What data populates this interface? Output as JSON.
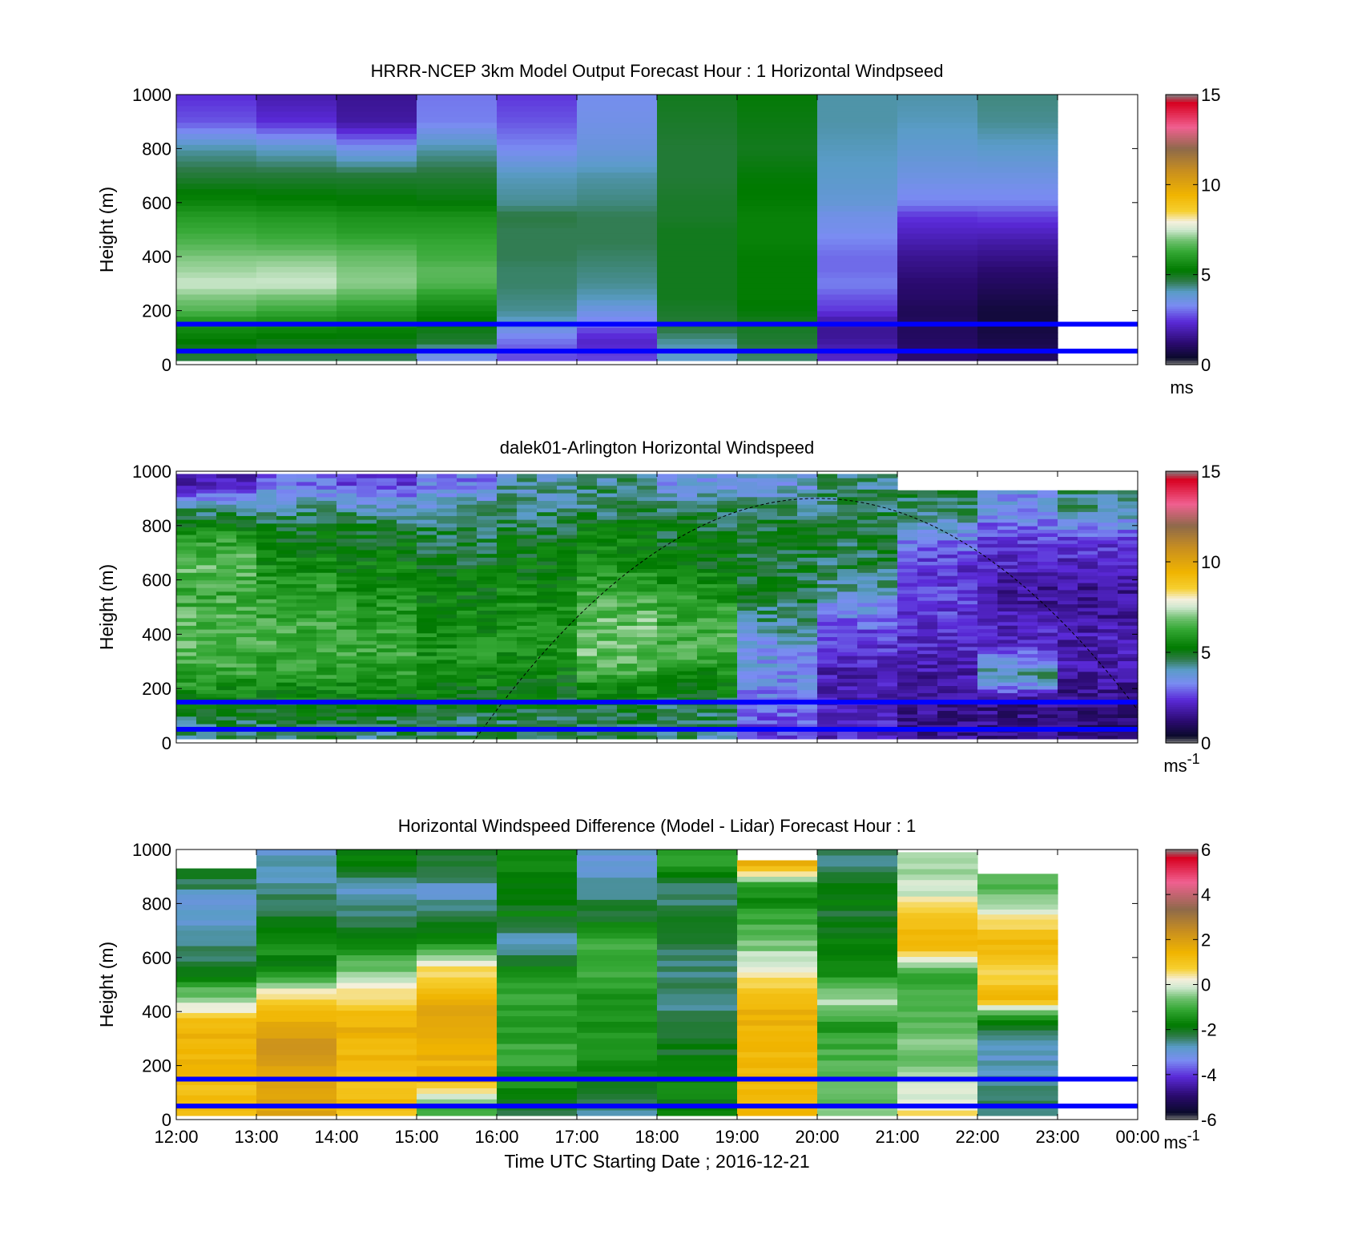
{
  "chart_data": [
    {
      "type": "heatmap",
      "title": "HRRR-NCEP 3km Model Output   Forecast Hour : 1 Horizontal Windpseed",
      "ylabel": "Height (m)",
      "ylim": [
        0,
        1000
      ],
      "yticks": [
        "0",
        "200",
        "400",
        "600",
        "800",
        "1000"
      ],
      "xticks": [
        "12:00",
        "13:00",
        "14:00",
        "15:00",
        "16:00",
        "17:00",
        "18:00",
        "19:00",
        "20:00",
        "21:00",
        "22:00",
        "23:00",
        "00:00"
      ],
      "show_xtick_labels": false,
      "colorbar": {
        "min": 0,
        "max": 15,
        "ticks": [
          "0",
          "5",
          "10",
          "15"
        ],
        "unit": "ms",
        "unit_sup": "",
        "scale": "speed"
      },
      "x_hours": [
        12,
        13,
        14,
        15,
        16,
        17,
        18,
        19,
        20,
        21,
        22
      ],
      "heights": [
        40,
        80,
        120,
        160,
        200,
        250,
        300,
        350,
        400,
        450,
        500,
        550,
        600,
        700,
        800,
        900,
        1000
      ],
      "grid_values": [
        [
          4.8,
          4.6,
          4.6,
          3.5,
          2.7,
          2.6,
          4.0,
          4.5,
          2.2,
          1.2,
          1.0
        ],
        [
          5.2,
          5.0,
          5.0,
          4.8,
          3.0,
          2.2,
          4.2,
          4.8,
          1.8,
          1.1,
          0.8
        ],
        [
          5.5,
          5.4,
          5.3,
          5.0,
          3.4,
          2.5,
          4.6,
          4.9,
          1.6,
          1.0,
          0.7
        ],
        [
          5.8,
          5.7,
          5.6,
          5.2,
          4.0,
          3.2,
          4.8,
          5.0,
          1.8,
          1.0,
          0.6
        ],
        [
          6.6,
          6.3,
          6.0,
          5.5,
          4.3,
          3.6,
          4.9,
          5.2,
          2.5,
          0.9,
          0.6
        ],
        [
          7.0,
          6.9,
          6.6,
          6.0,
          4.4,
          4.1,
          5.0,
          5.3,
          2.8,
          1.1,
          0.8
        ],
        [
          7.5,
          7.5,
          7.1,
          6.6,
          4.5,
          4.3,
          5.0,
          5.3,
          3.2,
          1.2,
          1.0
        ],
        [
          7.2,
          7.3,
          7.0,
          6.7,
          4.5,
          4.4,
          5.0,
          5.3,
          3.0,
          1.4,
          1.2
        ],
        [
          7.0,
          7.0,
          6.8,
          6.4,
          4.6,
          4.5,
          5.0,
          5.3,
          3.0,
          1.6,
          1.5
        ],
        [
          6.6,
          6.5,
          6.4,
          6.3,
          4.6,
          4.6,
          5.0,
          5.4,
          3.2,
          1.9,
          1.8
        ],
        [
          6.3,
          6.2,
          6.0,
          6.0,
          4.6,
          4.6,
          5.0,
          5.4,
          3.4,
          2.2,
          2.2
        ],
        [
          6.0,
          5.9,
          5.8,
          5.8,
          4.7,
          4.6,
          4.9,
          5.4,
          3.5,
          2.5,
          2.6
        ],
        [
          5.5,
          5.4,
          5.3,
          5.2,
          4.3,
          4.4,
          4.9,
          5.3,
          3.8,
          3.2,
          3.2
        ],
        [
          4.8,
          4.8,
          4.8,
          4.8,
          4.1,
          4.2,
          4.8,
          5.2,
          4.0,
          3.6,
          3.6
        ],
        [
          4.2,
          4.0,
          3.5,
          4.2,
          3.3,
          3.7,
          4.8,
          5.0,
          4.1,
          3.9,
          4.0
        ],
        [
          2.8,
          2.4,
          1.8,
          3.2,
          2.8,
          3.5,
          4.9,
          5.1,
          4.2,
          4.1,
          4.3
        ],
        [
          2.4,
          1.9,
          1.6,
          3.1,
          2.5,
          3.4,
          5.0,
          5.2,
          4.2,
          4.2,
          4.4
        ]
      ],
      "guide_lines_m": [
        50,
        150
      ]
    },
    {
      "type": "heatmap",
      "title": "dalek01-Arlington  Horizontal Windspeed",
      "ylabel": "Height (m)",
      "ylim": [
        0,
        1000
      ],
      "yticks": [
        "0",
        "200",
        "400",
        "600",
        "800",
        "1000"
      ],
      "xticks": [
        "12:00",
        "13:00",
        "14:00",
        "15:00",
        "16:00",
        "17:00",
        "18:00",
        "19:00",
        "20:00",
        "21:00",
        "22:00",
        "23:00",
        "00:00"
      ],
      "show_xtick_labels": false,
      "colorbar": {
        "min": 0,
        "max": 15,
        "ticks": [
          "0",
          "5",
          "10",
          "15"
        ],
        "unit": "ms",
        "unit_sup": "-1",
        "scale": "speed"
      },
      "x_hours": [
        12,
        13,
        14,
        15,
        16,
        17,
        18,
        19,
        20,
        21,
        22,
        23
      ],
      "heights": [
        50,
        150,
        250,
        350,
        450,
        550,
        650,
        750,
        850,
        950
      ],
      "grid_values": [
        [
          4.5,
          4.6,
          4.6,
          4.4,
          4.6,
          4.6,
          4.4,
          2.6,
          2.2,
          1.6,
          1.5,
          1.3
        ],
        [
          5.2,
          5.2,
          5.2,
          5.1,
          5.0,
          5.0,
          4.8,
          3.2,
          2.0,
          1.6,
          1.5,
          1.4
        ],
        [
          6.2,
          6.0,
          6.0,
          5.6,
          5.4,
          6.2,
          5.6,
          3.4,
          2.0,
          1.8,
          4.4,
          1.8
        ],
        [
          6.6,
          6.4,
          6.3,
          5.8,
          5.8,
          6.9,
          6.6,
          3.6,
          2.4,
          2.2,
          2.4,
          2.0
        ],
        [
          6.6,
          6.3,
          6.1,
          5.5,
          5.8,
          6.8,
          6.3,
          4.4,
          3.0,
          2.4,
          2.0,
          1.8
        ],
        [
          6.3,
          6.2,
          5.8,
          5.4,
          5.6,
          6.3,
          5.9,
          4.8,
          4.0,
          2.6,
          1.6,
          1.6
        ],
        [
          6.6,
          5.7,
          5.4,
          5.0,
          5.2,
          5.8,
          5.3,
          4.8,
          4.6,
          2.4,
          2.2,
          2.0
        ],
        [
          6.2,
          5.2,
          5.0,
          4.8,
          5.0,
          5.4,
          5.0,
          4.9,
          4.8,
          3.2,
          2.6,
          2.6
        ],
        [
          4.6,
          4.4,
          4.4,
          4.3,
          4.5,
          4.7,
          4.6,
          4.6,
          4.6,
          4.5,
          3.4,
          4.2
        ],
        [
          2.0,
          3.0,
          2.6,
          3.2,
          4.2,
          4.4,
          3.6,
          3.8,
          4.4,
          4.6,
          3.5,
          4.6
        ]
      ],
      "guide_lines_m": [
        50,
        150
      ],
      "dashed_curve": {
        "start_hour": 15.7,
        "peak_hour": 20.0,
        "peak_height": 900,
        "end_hour": 24.0,
        "end_height": 60
      }
    },
    {
      "type": "heatmap",
      "title": "Horizontal Windspeed Difference (Model - Lidar) Forecast Hour : 1",
      "ylabel": "Height (m)",
      "xlabel": "Time UTC  Starting Date ; 2016-12-21",
      "ylim": [
        0,
        1000
      ],
      "yticks": [
        "0",
        "200",
        "400",
        "600",
        "800",
        "1000"
      ],
      "xticks": [
        "12:00",
        "13:00",
        "14:00",
        "15:00",
        "16:00",
        "17:00",
        "18:00",
        "19:00",
        "20:00",
        "21:00",
        "22:00",
        "23:00",
        "00:00"
      ],
      "show_xtick_labels": true,
      "colorbar": {
        "min": -6,
        "max": 6,
        "ticks": [
          "-6",
          "-4",
          "-2",
          "0",
          "2",
          "4",
          "6"
        ],
        "unit": "ms",
        "unit_sup": "-1",
        "scale": "diff"
      },
      "x_hours": [
        12,
        13,
        14,
        15,
        16,
        17,
        18,
        19,
        20,
        21,
        22
      ],
      "heights": [
        50,
        150,
        250,
        350,
        450,
        550,
        650,
        750,
        850,
        950
      ],
      "top_m": [
        930,
        1000,
        1000,
        1000,
        1000,
        1000,
        1000,
        960,
        1000,
        990,
        910
      ],
      "grid_values": [
        [
          1.2,
          1.8,
          1.2,
          -1.0,
          -2.2,
          -2.6,
          -1.8,
          1.4,
          -0.6,
          0.4,
          -2.4
        ],
        [
          1.2,
          1.8,
          1.2,
          1.3,
          -1.4,
          -1.8,
          -1.6,
          1.4,
          -0.8,
          -0.4,
          -2.6
        ],
        [
          1.4,
          2.2,
          1.4,
          1.6,
          -1.0,
          -1.3,
          -2.0,
          1.3,
          -1.0,
          -0.6,
          -2.8
        ],
        [
          1.4,
          1.8,
          1.5,
          1.8,
          -1.3,
          -1.6,
          -2.2,
          1.5,
          -1.4,
          -0.6,
          -2.2
        ],
        [
          -0.4,
          0.8,
          0.6,
          1.6,
          -1.0,
          -1.4,
          -2.6,
          1.4,
          -0.2,
          -1.0,
          1.4
        ],
        [
          -2.0,
          -1.8,
          -0.6,
          0.6,
          -1.6,
          -1.0,
          -2.4,
          0.2,
          -1.6,
          -1.0,
          0.6
        ],
        [
          -2.6,
          -1.4,
          -1.6,
          -1.4,
          -2.8,
          -1.0,
          -2.2,
          -0.6,
          -1.8,
          1.6,
          1.4
        ],
        [
          -3.0,
          -2.2,
          -2.4,
          -2.4,
          -1.8,
          -2.0,
          -2.0,
          -1.2,
          -2.2,
          1.2,
          0.4
        ],
        [
          -2.6,
          -2.6,
          -2.8,
          -2.8,
          -2.0,
          -2.6,
          -2.6,
          -1.6,
          -1.6,
          -0.2,
          -0.8
        ],
        [
          -1.4,
          -2.8,
          -1.8,
          -2.2,
          -1.6,
          -3.0,
          -1.4,
          1.5,
          -2.4,
          -0.4,
          -1.0
        ]
      ],
      "guide_lines_m": [
        50,
        150
      ]
    }
  ],
  "colors": {
    "guide_line": "#0000ff",
    "curve": "#000000",
    "speed_stops": [
      [
        0.0,
        "#808080"
      ],
      [
        0.025,
        "#0a0a2a"
      ],
      [
        0.08,
        "#2a0a6e"
      ],
      [
        0.16,
        "#5a2ad8"
      ],
      [
        0.22,
        "#7a8cf2"
      ],
      [
        0.27,
        "#5a9cc8"
      ],
      [
        0.31,
        "#2e7a48"
      ],
      [
        0.35,
        "#007a00"
      ],
      [
        0.42,
        "#35a835"
      ],
      [
        0.46,
        "#6fc06f"
      ],
      [
        0.5,
        "#cfe8cf"
      ],
      [
        0.53,
        "#f5f0dc"
      ],
      [
        0.57,
        "#f6cf30"
      ],
      [
        0.63,
        "#f0b400"
      ],
      [
        0.72,
        "#c88e20"
      ],
      [
        0.8,
        "#8e6a4a"
      ],
      [
        0.88,
        "#f06090"
      ],
      [
        0.97,
        "#d80020"
      ],
      [
        1.0,
        "#808080"
      ]
    ],
    "diff_stops": [
      [
        0.0,
        "#808080"
      ],
      [
        0.025,
        "#0a0a2a"
      ],
      [
        0.09,
        "#2a0a6e"
      ],
      [
        0.16,
        "#5a2ad8"
      ],
      [
        0.22,
        "#7a8cf2"
      ],
      [
        0.27,
        "#5a9cc8"
      ],
      [
        0.31,
        "#2e7a48"
      ],
      [
        0.35,
        "#007a00"
      ],
      [
        0.41,
        "#35a835"
      ],
      [
        0.45,
        "#6fc06f"
      ],
      [
        0.49,
        "#cfe8cf"
      ],
      [
        0.52,
        "#f5f0dc"
      ],
      [
        0.56,
        "#f6cf30"
      ],
      [
        0.62,
        "#f0b400"
      ],
      [
        0.7,
        "#c88e20"
      ],
      [
        0.78,
        "#8e6a4a"
      ],
      [
        0.88,
        "#f06090"
      ],
      [
        0.97,
        "#d80020"
      ],
      [
        1.0,
        "#808080"
      ]
    ]
  }
}
